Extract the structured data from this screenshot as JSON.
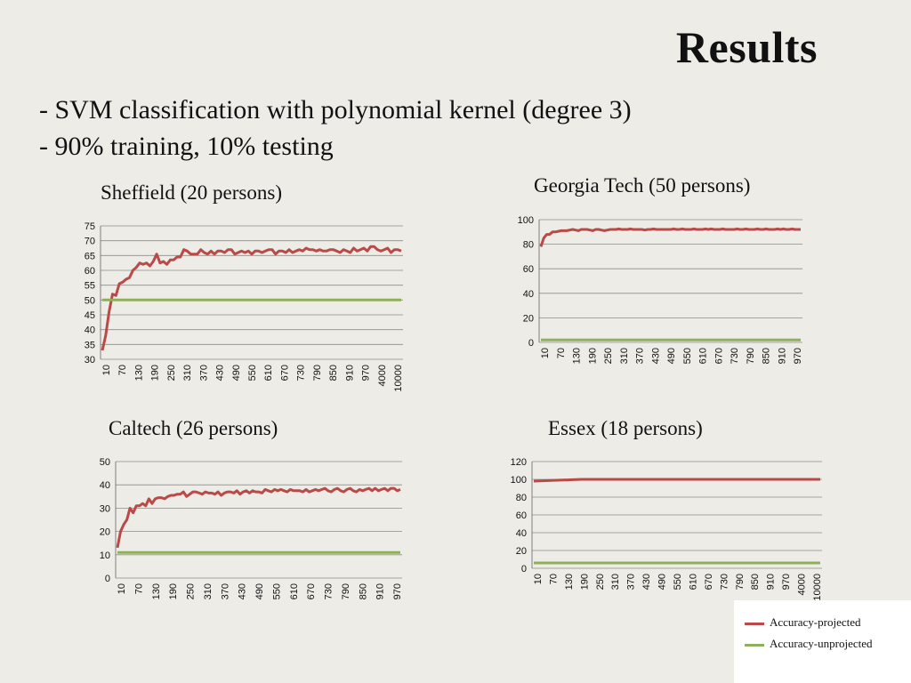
{
  "slide": {
    "title": "Results",
    "bullets": [
      "- SVM classification with polynomial kernel (degree 3)",
      "- 90% training, 10% testing"
    ]
  },
  "colors": {
    "projected": "#b94a48",
    "unprojected": "#8fb05a",
    "grid": "#8c8c8c",
    "background": "#edece6"
  },
  "legend": {
    "items": [
      {
        "label": "Accuracy-projected",
        "color": "#b94a48"
      },
      {
        "label": "Accuracy-unprojected",
        "color": "#8fb05a"
      }
    ]
  },
  "chart_data": [
    {
      "type": "line",
      "title": "Sheffield (20 persons)",
      "xlabel": "",
      "ylabel": "",
      "ylim": [
        30,
        75
      ],
      "yticks": [
        30,
        35,
        40,
        45,
        50,
        55,
        60,
        65,
        70,
        75
      ],
      "x_tick_labels": [
        "10",
        "70",
        "130",
        "190",
        "250",
        "310",
        "370",
        "430",
        "490",
        "550",
        "610",
        "670",
        "730",
        "790",
        "850",
        "910",
        "970",
        "4000",
        "10000"
      ],
      "grid": true,
      "series": [
        {
          "name": "Accuracy-projected",
          "values": [
            33,
            38,
            46,
            52,
            51.5,
            55.5,
            56,
            57,
            57.5,
            60,
            61,
            62.5,
            62,
            62.5,
            61.5,
            63,
            65.5,
            62.5,
            63,
            62,
            63.5,
            63.5,
            64.5,
            64.5,
            67,
            66.5,
            65.5,
            65.5,
            65.5,
            67,
            66,
            65.5,
            66.5,
            65.5,
            66.5,
            66.5,
            66,
            67,
            67,
            65.5,
            66,
            66.5,
            66,
            66.5,
            65.5,
            66.5,
            66.5,
            66,
            66.5,
            67,
            67,
            65.5,
            66.5,
            66.5,
            66,
            67,
            66,
            66.5,
            67,
            66.5,
            67.5,
            67,
            67,
            66.5,
            67,
            66.5,
            66.5,
            67,
            67,
            66.5,
            66,
            67,
            66.5,
            66,
            67.5,
            66.5,
            67,
            67.5,
            66.5,
            68,
            68,
            67,
            66.5,
            67,
            67.5,
            66,
            67,
            67,
            66.5
          ]
        },
        {
          "name": "Accuracy-unprojected",
          "values": [
            50,
            50
          ]
        }
      ]
    },
    {
      "type": "line",
      "title": "Georgia Tech (50 persons)",
      "xlabel": "",
      "ylabel": "",
      "ylim": [
        0,
        100
      ],
      "yticks": [
        0,
        20,
        40,
        60,
        80,
        100
      ],
      "x_tick_labels": [
        "10",
        "70",
        "130",
        "190",
        "250",
        "310",
        "370",
        "430",
        "490",
        "550",
        "610",
        "670",
        "730",
        "790",
        "850",
        "910",
        "970"
      ],
      "grid": true,
      "series": [
        {
          "name": "Accuracy-projected",
          "values": [
            78,
            85,
            88,
            88,
            90,
            90,
            90.5,
            91,
            91,
            91,
            91.5,
            92,
            91.5,
            91,
            92,
            92,
            92,
            91.5,
            91,
            92,
            92,
            91.5,
            91,
            91.5,
            92,
            92,
            92,
            92.5,
            92,
            92,
            92,
            92.5,
            92,
            92,
            92,
            92,
            91.5,
            92,
            92,
            92.5,
            92,
            92,
            92,
            92,
            92,
            92,
            92.5,
            92,
            92,
            92.5,
            92,
            92,
            92,
            92.5,
            92,
            92,
            92,
            92.5,
            92,
            92.5,
            92,
            92,
            92,
            92.5,
            92,
            92,
            92,
            92,
            92.5,
            92,
            92,
            92.5,
            92,
            92,
            92,
            92.5,
            92,
            92,
            92.5,
            92,
            92,
            92,
            92.5,
            92,
            92.5,
            92,
            92,
            92.5,
            92,
            92,
            92
          ]
        },
        {
          "name": "Accuracy-unprojected",
          "values": [
            2,
            2
          ]
        }
      ]
    },
    {
      "type": "line",
      "title": "Caltech (26 persons)",
      "xlabel": "",
      "ylabel": "",
      "ylim": [
        0,
        50
      ],
      "yticks": [
        0,
        10,
        20,
        30,
        40,
        50
      ],
      "x_tick_labels": [
        "10",
        "70",
        "130",
        "190",
        "250",
        "310",
        "370",
        "430",
        "490",
        "550",
        "610",
        "670",
        "730",
        "790",
        "850",
        "910",
        "970"
      ],
      "grid": true,
      "series": [
        {
          "name": "Accuracy-projected",
          "values": [
            13,
            20,
            23,
            25,
            30,
            28,
            31,
            31,
            32,
            31,
            34,
            32,
            34,
            34.5,
            34.5,
            34,
            35,
            35.5,
            35.5,
            36,
            36,
            37,
            35,
            36,
            37,
            37,
            36.5,
            36,
            37,
            36.5,
            36.5,
            36,
            37,
            35.5,
            36.5,
            37,
            37,
            36.5,
            37.5,
            36,
            37,
            37.5,
            36.5,
            37.5,
            37,
            37,
            36.5,
            38,
            37.5,
            37,
            38,
            37.5,
            38,
            37.5,
            37,
            38,
            37.5,
            37.5,
            37.5,
            37,
            38,
            37,
            37.5,
            38,
            37.5,
            38,
            38.5,
            37.5,
            37,
            38,
            38.5,
            37.5,
            37,
            38,
            38.5,
            37.5,
            37,
            38,
            37.5,
            38,
            38.5,
            37.5,
            38.5,
            37.5,
            38,
            38.5,
            37.5,
            38.5,
            38.5,
            37.5,
            38
          ]
        },
        {
          "name": "Accuracy-unprojected",
          "values": [
            11,
            11
          ]
        }
      ]
    },
    {
      "type": "line",
      "title": "Essex (18 persons)",
      "xlabel": "",
      "ylabel": "",
      "ylim": [
        0,
        120
      ],
      "yticks": [
        0,
        20,
        40,
        60,
        80,
        100,
        120
      ],
      "x_tick_labels": [
        "10",
        "70",
        "130",
        "190",
        "250",
        "310",
        "370",
        "430",
        "490",
        "550",
        "610",
        "670",
        "730",
        "790",
        "850",
        "910",
        "970",
        "4000",
        "10000"
      ],
      "grid": true,
      "series": [
        {
          "name": "Accuracy-projected",
          "values": [
            98,
            100,
            100,
            100,
            100,
            100,
            100
          ]
        },
        {
          "name": "Accuracy-unprojected",
          "values": [
            6,
            6
          ]
        }
      ]
    }
  ]
}
